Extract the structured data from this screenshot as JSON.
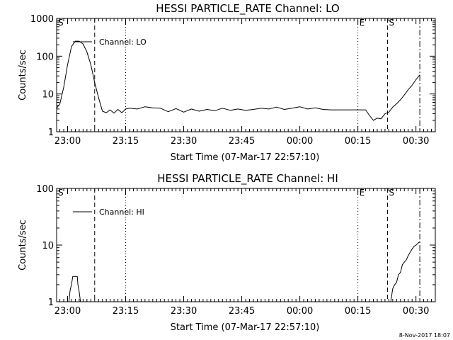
{
  "chart_data": [
    {
      "type": "line",
      "title": "HESSI PARTICLE_RATE Channel: LO",
      "xlabel": "Start Time (07-Mar-17 22:57:10)",
      "ylabel": "Counts/sec",
      "yscale": "log",
      "ylim": [
        1,
        1000
      ],
      "yticks": [
        "1",
        "10",
        "100",
        "1000"
      ],
      "xlim": [
        "22:57:10",
        "00:35:00"
      ],
      "xticks": [
        "23:00",
        "23:15",
        "23:30",
        "23:45",
        "00:00",
        "00:15",
        "00:30"
      ],
      "legend": {
        "position": "top-left",
        "entries": [
          "Channel: LO"
        ]
      },
      "series": [
        {
          "name": "Channel: LO",
          "points": [
            [
              "22:57:10",
              4.2
            ],
            [
              "22:58:00",
              5.5
            ],
            [
              "22:59:00",
              15
            ],
            [
              "23:00:00",
              60
            ],
            [
              "23:01:00",
              180
            ],
            [
              "23:02:00",
              250
            ],
            [
              "23:03:00",
              250
            ],
            [
              "23:04:00",
              210
            ],
            [
              "23:05:00",
              130
            ],
            [
              "23:06:00",
              60
            ],
            [
              "23:07:00",
              20
            ],
            [
              "23:08:00",
              8
            ],
            [
              "23:09:00",
              3.5
            ],
            [
              "23:10:00",
              3.2
            ],
            [
              "23:11:00",
              3.8
            ],
            [
              "23:12:00",
              3.1
            ],
            [
              "23:13:00",
              3.9
            ],
            [
              "23:14:00",
              3.2
            ],
            [
              "23:15:00",
              4.0
            ],
            [
              "23:16:00",
              4.2
            ],
            [
              "23:18:00",
              4.0
            ],
            [
              "23:20:00",
              4.6
            ],
            [
              "23:22:00",
              4.3
            ],
            [
              "23:24:00",
              4.2
            ],
            [
              "23:26:00",
              3.4
            ],
            [
              "23:28:00",
              4.1
            ],
            [
              "23:30:00",
              3.3
            ],
            [
              "23:32:00",
              4.0
            ],
            [
              "23:34:00",
              3.5
            ],
            [
              "23:36:00",
              3.9
            ],
            [
              "23:38:00",
              3.6
            ],
            [
              "23:40:00",
              4.2
            ],
            [
              "23:42:00",
              3.7
            ],
            [
              "23:44:00",
              4.0
            ],
            [
              "23:46:00",
              3.7
            ],
            [
              "23:48:00",
              3.9
            ],
            [
              "23:50:00",
              4.2
            ],
            [
              "23:52:00",
              4.0
            ],
            [
              "23:54:00",
              4.5
            ],
            [
              "23:56:00",
              3.9
            ],
            [
              "23:58:00",
              4.2
            ],
            [
              "00:00:00",
              4.6
            ],
            [
              "00:02:00",
              4.0
            ],
            [
              "00:04:00",
              4.3
            ],
            [
              "00:06:00",
              3.9
            ],
            [
              "00:08:00",
              3.8
            ],
            [
              "00:10:00",
              3.8
            ],
            [
              "00:12:00",
              3.8
            ],
            [
              "00:14:00",
              3.8
            ],
            [
              "00:16:00",
              3.8
            ],
            [
              "00:17:00",
              3.8
            ],
            [
              "00:18:00",
              2.7
            ],
            [
              "00:19:00",
              2.0
            ],
            [
              "00:20:00",
              2.3
            ],
            [
              "00:21:00",
              2.2
            ],
            [
              "00:22:00",
              3.0
            ],
            [
              "00:23:00",
              3.3
            ],
            [
              "00:24:00",
              4.5
            ],
            [
              "00:25:00",
              5.5
            ],
            [
              "00:26:00",
              7.0
            ],
            [
              "00:27:00",
              9.5
            ],
            [
              "00:28:00",
              13
            ],
            [
              "00:29:00",
              17
            ],
            [
              "00:30:00",
              24
            ],
            [
              "00:31:00",
              32
            ]
          ]
        }
      ],
      "markers": [
        {
          "label": "S",
          "time": "22:57:10",
          "style": "dash-dot"
        },
        {
          "label": "",
          "time": "23:07:00",
          "style": "dashed"
        },
        {
          "label": "",
          "time": "23:15:00",
          "style": "dotted"
        },
        {
          "label": "E",
          "time": "00:15:00",
          "style": "dotted"
        },
        {
          "label": "S",
          "time": "00:22:40",
          "style": "dashed"
        },
        {
          "label": "",
          "time": "00:31:00",
          "style": "dash-dot"
        }
      ]
    },
    {
      "type": "line",
      "title": "HESSI PARTICLE_RATE Channel: HI",
      "xlabel": "Start Time (07-Mar-17 22:57:10)",
      "ylabel": "Counts/sec",
      "yscale": "log",
      "ylim": [
        1,
        100
      ],
      "yticks": [
        "1",
        "10",
        "100"
      ],
      "xlim": [
        "22:57:10",
        "00:35:00"
      ],
      "xticks": [
        "23:00",
        "23:15",
        "23:30",
        "23:45",
        "00:00",
        "00:15",
        "00:30"
      ],
      "legend": {
        "position": "top-left",
        "entries": [
          "Channel: HI"
        ]
      },
      "series": [
        {
          "name": "Channel: HI",
          "segments": [
            [
              [
                "23:00:20",
                1.0
              ],
              [
                "23:00:40",
                1.6
              ],
              [
                "23:01:00",
                2.0
              ],
              [
                "23:01:20",
                2.8
              ],
              [
                "23:02:00",
                2.8
              ],
              [
                "23:02:30",
                2.8
              ],
              [
                "23:02:40",
                2.0
              ],
              [
                "23:03:00",
                1.5
              ],
              [
                "23:03:20",
                1.0
              ]
            ],
            [
              [
                "00:23:30",
                1.0
              ],
              [
                "00:24:00",
                1.7
              ],
              [
                "00:24:30",
                2.0
              ],
              [
                "00:25:00",
                2.2
              ],
              [
                "00:25:30",
                3.0
              ],
              [
                "00:26:00",
                3.3
              ],
              [
                "00:26:30",
                4.5
              ],
              [
                "00:27:00",
                5.0
              ],
              [
                "00:27:30",
                5.5
              ],
              [
                "00:28:00",
                6.5
              ],
              [
                "00:28:30",
                7.5
              ],
              [
                "00:29:00",
                8.5
              ],
              [
                "00:29:30",
                9.5
              ],
              [
                "00:30:00",
                10.0
              ],
              [
                "00:31:00",
                11.5
              ]
            ]
          ]
        }
      ],
      "markers": [
        {
          "label": "S",
          "time": "22:57:10",
          "style": "dash-dot"
        },
        {
          "label": "",
          "time": "23:07:00",
          "style": "dashed"
        },
        {
          "label": "",
          "time": "23:15:00",
          "style": "dotted"
        },
        {
          "label": "E",
          "time": "00:15:00",
          "style": "dotted"
        },
        {
          "label": "S",
          "time": "00:22:40",
          "style": "dashed"
        },
        {
          "label": "",
          "time": "00:31:00",
          "style": "dash-dot"
        }
      ]
    }
  ],
  "footer": {
    "timestamp": "8-Nov-2017 18:07"
  }
}
